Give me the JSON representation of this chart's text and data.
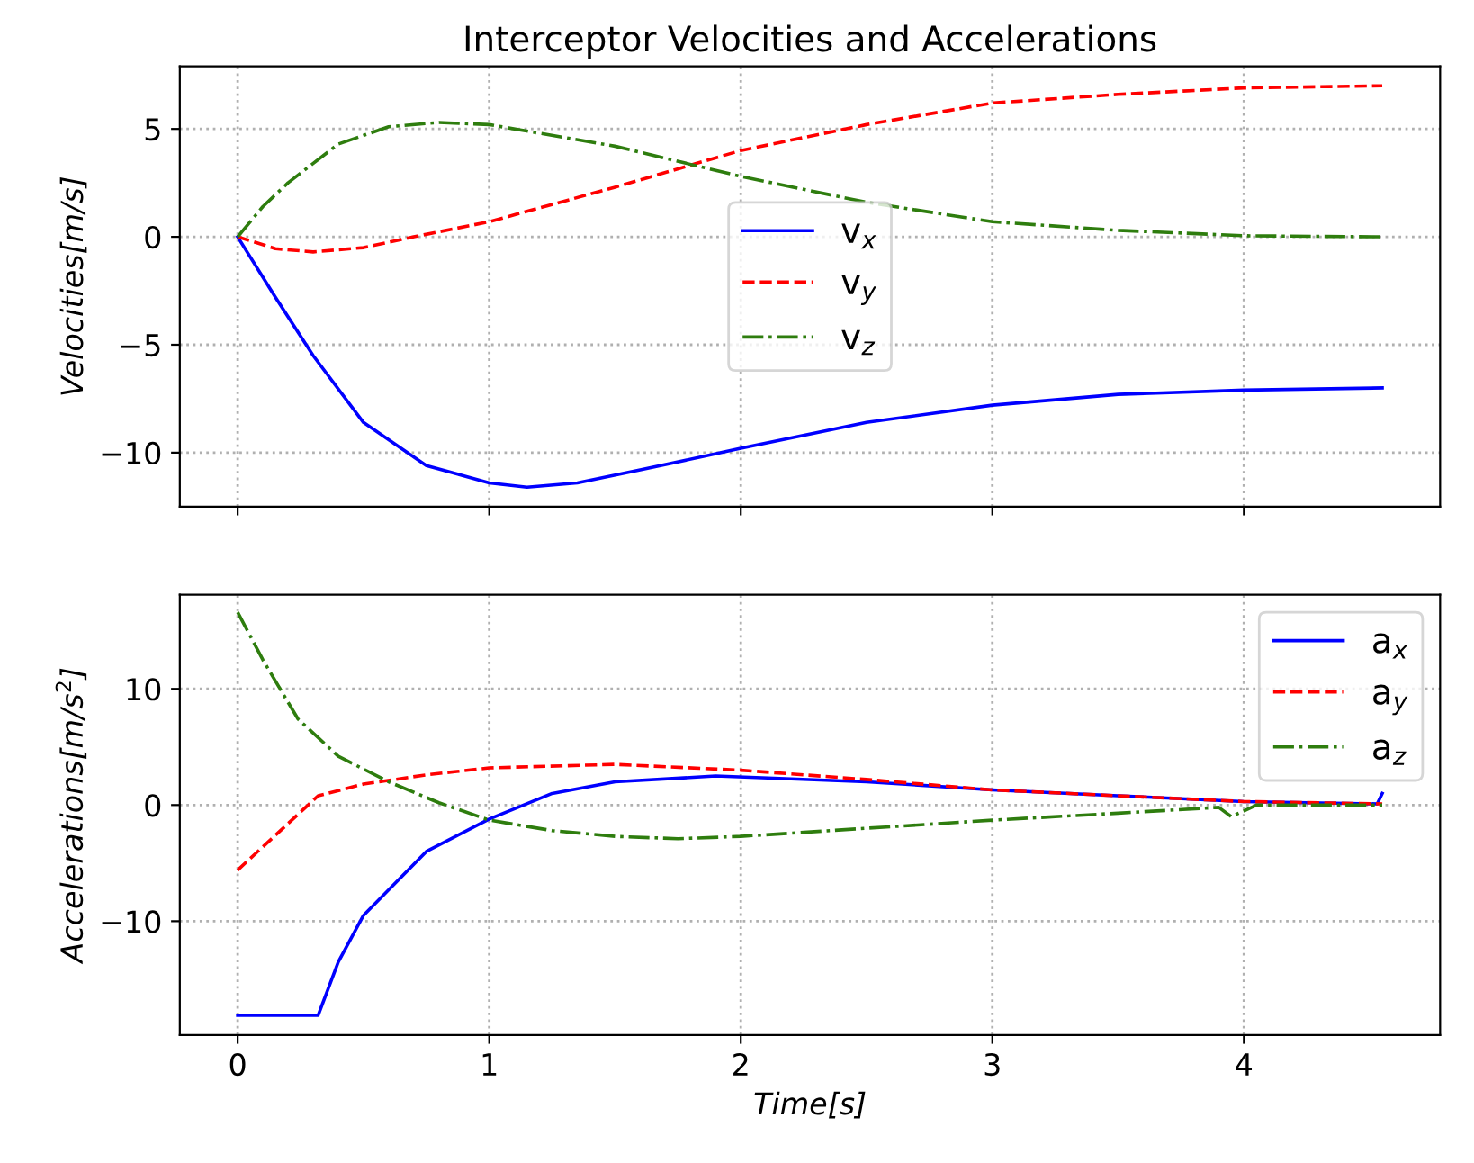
{
  "chart_data": [
    {
      "type": "line",
      "title": "Interceptor Velocities and Accelerations",
      "ylabel": "Velocities[m/s]",
      "xlim": [
        -0.23,
        4.78
      ],
      "xticks": [
        0,
        1,
        2,
        3,
        4
      ],
      "ylim": [
        -12.5,
        7.9
      ],
      "yticks": [
        -10,
        -5,
        0,
        5
      ],
      "grid": true,
      "legend": "center",
      "tick_labels": "y",
      "series": [
        {
          "name": "v$_{x}$",
          "color": "#0000ff",
          "line_style": "solid",
          "x": [
            0,
            0.15,
            0.3,
            0.5,
            0.75,
            1.0,
            1.15,
            1.35,
            1.6,
            2.0,
            2.5,
            3.0,
            3.5,
            4.0,
            4.55
          ],
          "values": [
            0,
            -2.8,
            -5.5,
            -8.6,
            -10.6,
            -11.4,
            -11.6,
            -11.4,
            -10.8,
            -9.8,
            -8.6,
            -7.8,
            -7.3,
            -7.1,
            -7.0
          ]
        },
        {
          "name": "v$_{y}$",
          "color": "#ff0000",
          "line_style": "dashed",
          "x": [
            0,
            0.15,
            0.3,
            0.5,
            0.7,
            1.0,
            1.5,
            2.0,
            2.5,
            3.0,
            3.5,
            4.0,
            4.55
          ],
          "values": [
            0,
            -0.55,
            -0.7,
            -0.5,
            0,
            0.7,
            2.3,
            4.0,
            5.2,
            6.2,
            6.6,
            6.9,
            7.0
          ]
        },
        {
          "name": "v$_{z}$",
          "color": "#2e7d0e",
          "line_style": "dashdot",
          "x": [
            0,
            0.1,
            0.2,
            0.4,
            0.6,
            0.8,
            1.0,
            1.5,
            2.0,
            2.5,
            3.0,
            3.5,
            4.0,
            4.55
          ],
          "values": [
            0,
            1.4,
            2.5,
            4.3,
            5.1,
            5.3,
            5.2,
            4.2,
            2.8,
            1.6,
            0.7,
            0.3,
            0.05,
            0
          ]
        }
      ]
    },
    {
      "type": "line",
      "xlabel": "Time[s]",
      "ylabel": "Accelerations[m/s$^{2}$]",
      "xlim": [
        -0.23,
        4.78
      ],
      "xticks": [
        0,
        1,
        2,
        3,
        4
      ],
      "ylim": [
        -19.8,
        18.1
      ],
      "yticks": [
        -10,
        0,
        10
      ],
      "grid": true,
      "legend": "top right",
      "series": [
        {
          "name": "a$_{x}$",
          "color": "#0000ff",
          "line_style": "solid",
          "x": [
            0,
            0.32,
            0.4,
            0.5,
            0.75,
            1.0,
            1.25,
            1.5,
            1.9,
            2.5,
            3.0,
            3.5,
            4.0,
            4.53,
            4.55
          ],
          "values": [
            -18.1,
            -18.1,
            -13.5,
            -9.5,
            -4.0,
            -1.2,
            1.0,
            2.0,
            2.5,
            2.0,
            1.3,
            0.8,
            0.3,
            0.1,
            1.0
          ]
        },
        {
          "name": "a$_{y}$",
          "color": "#ff0000",
          "line_style": "dashed",
          "x": [
            0,
            0.32,
            0.5,
            0.75,
            1.0,
            1.5,
            2.0,
            2.5,
            3.0,
            3.5,
            4.0,
            4.55
          ],
          "values": [
            -5.6,
            0.8,
            1.8,
            2.6,
            3.2,
            3.5,
            3.0,
            2.2,
            1.3,
            0.8,
            0.3,
            0.1
          ]
        },
        {
          "name": "a$_{z}$",
          "color": "#2e7d0e",
          "line_style": "dashdot",
          "x": [
            0,
            0.1,
            0.24,
            0.4,
            0.6,
            0.8,
            1.0,
            1.25,
            1.5,
            1.75,
            2.0,
            2.5,
            3.0,
            3.5,
            3.9,
            3.95,
            4.05,
            4.55
          ],
          "values": [
            16.6,
            12.5,
            7.4,
            4.2,
            2.0,
            0.2,
            -1.3,
            -2.2,
            -2.7,
            -2.9,
            -2.7,
            -2.0,
            -1.3,
            -0.7,
            -0.2,
            -1.0,
            0.0,
            0
          ]
        }
      ]
    }
  ]
}
